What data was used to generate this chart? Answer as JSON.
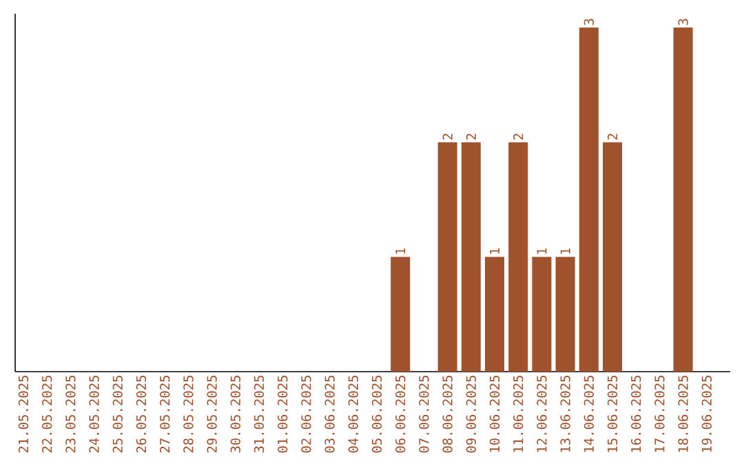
{
  "chart_data": {
    "type": "bar",
    "categories": [
      "21.05.2025",
      "22.05.2025",
      "23.05.2025",
      "24.05.2025",
      "25.05.2025",
      "26.05.2025",
      "27.05.2025",
      "28.05.2025",
      "29.05.2025",
      "30.05.2025",
      "31.05.2025",
      "01.06.2025",
      "02.06.2025",
      "03.06.2025",
      "04.06.2025",
      "05.06.2025",
      "06.06.2025",
      "07.06.2025",
      "08.06.2025",
      "09.06.2025",
      "10.06.2025",
      "11.06.2025",
      "12.06.2025",
      "13.06.2025",
      "14.06.2025",
      "15.06.2025",
      "16.06.2025",
      "17.06.2025",
      "18.06.2025",
      "19.06.2025"
    ],
    "values": [
      null,
      null,
      null,
      null,
      null,
      null,
      null,
      null,
      null,
      null,
      null,
      null,
      null,
      null,
      null,
      null,
      1,
      null,
      2,
      2,
      1,
      2,
      1,
      1,
      3,
      2,
      null,
      null,
      3,
      null
    ],
    "data_labels": true,
    "color": "#a0522d",
    "tick_labels": "x"
  }
}
